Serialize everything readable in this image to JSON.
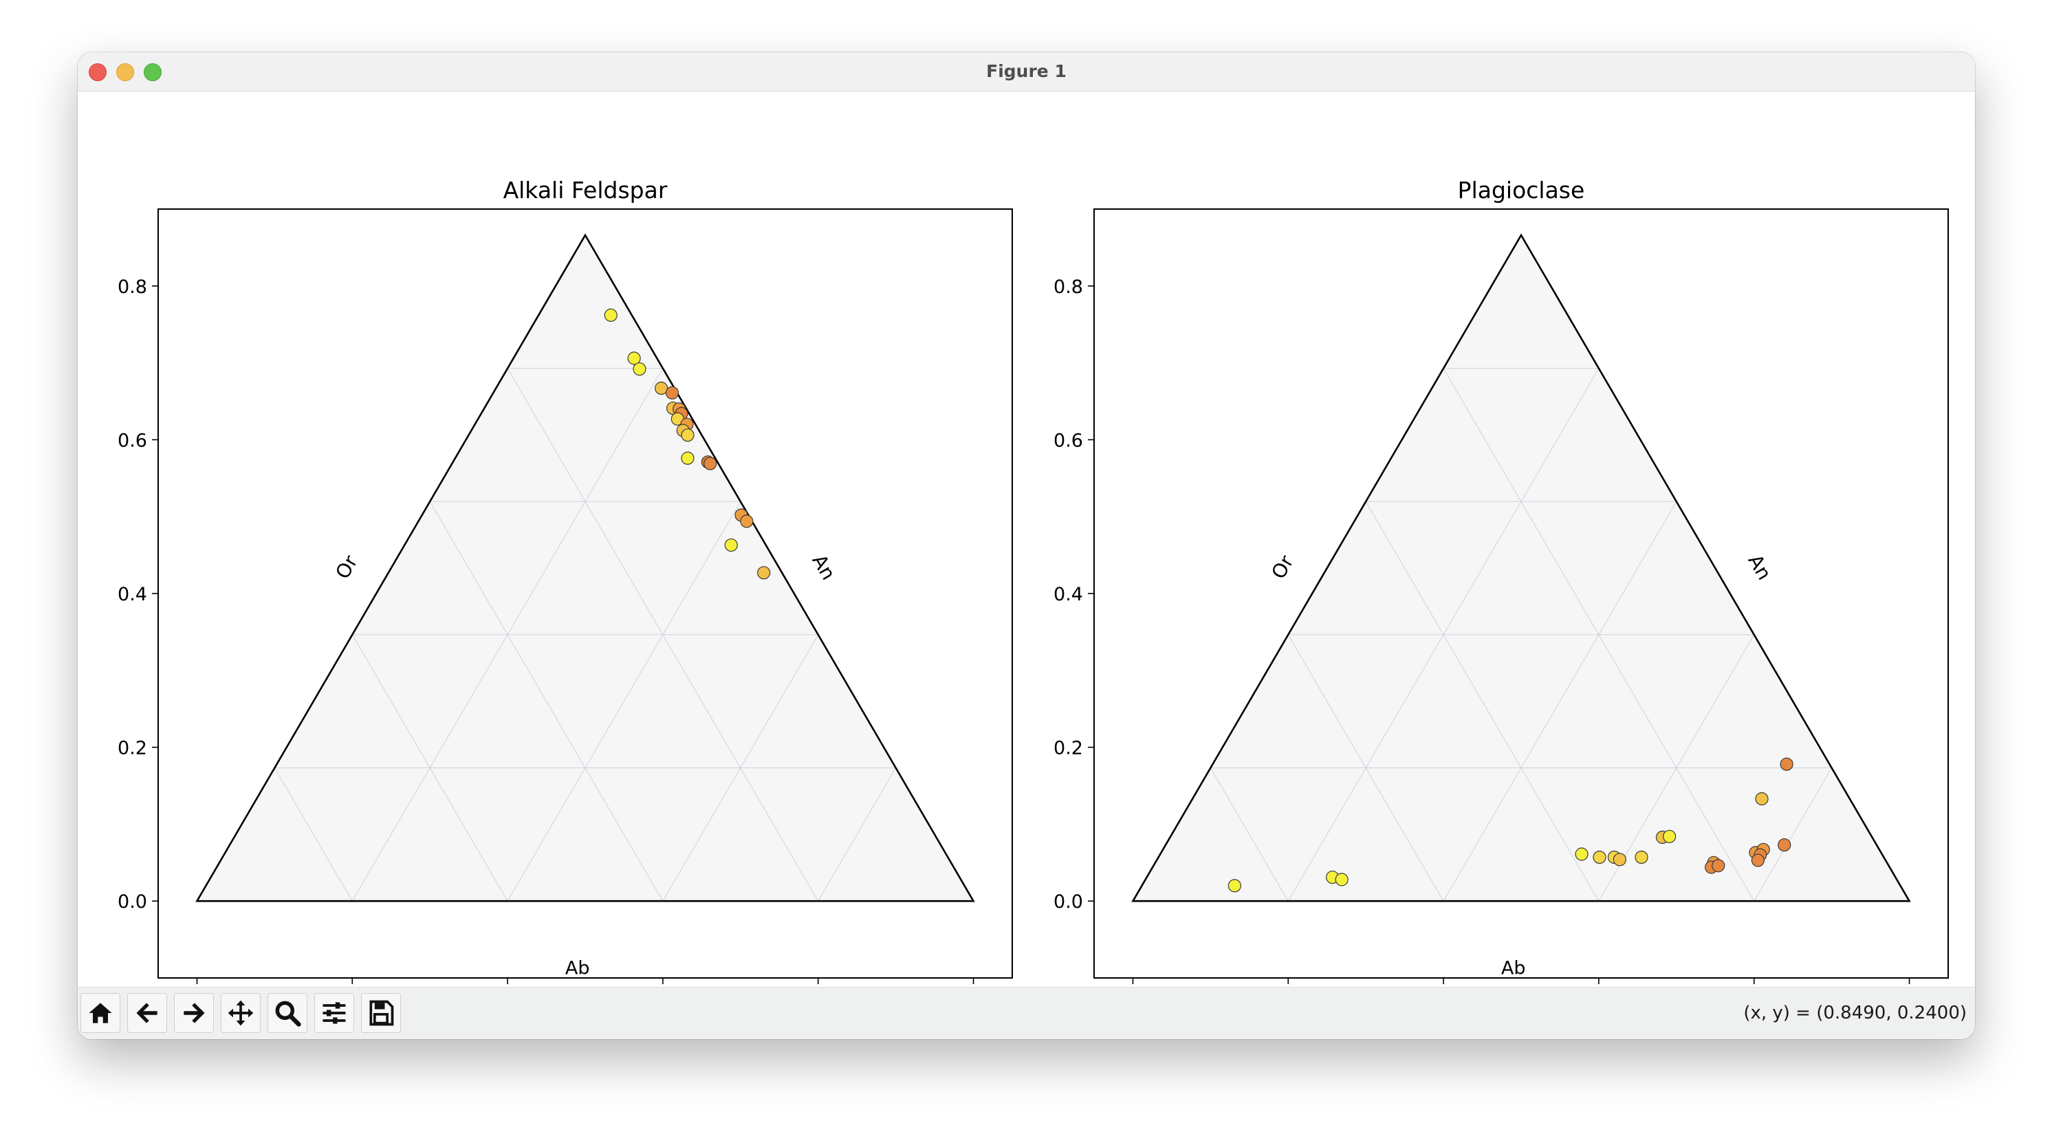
{
  "window": {
    "title": "Figure 1"
  },
  "toolbar": {
    "tools": [
      {
        "name": "home-icon"
      },
      {
        "name": "back-icon"
      },
      {
        "name": "forward-icon"
      },
      {
        "name": "pan-icon"
      },
      {
        "name": "zoom-icon"
      },
      {
        "name": "configure-subplots-icon"
      },
      {
        "name": "save-icon"
      }
    ],
    "coords": "(x, y) = (0.8490, 0.2400)"
  },
  "chart_data": [
    {
      "type": "scatter",
      "subtype": "ternary",
      "title": "Alkali Feldspar",
      "corner_labels": {
        "left_edge": "Or",
        "right_edge": "An",
        "bottom_edge": "Ab"
      },
      "xlim": [
        -0.05,
        1.05
      ],
      "ylim": [
        -0.1,
        0.9
      ],
      "xticks": [
        "0.0",
        "0.2",
        "0.4",
        "0.6",
        "0.8",
        "1.0"
      ],
      "yticks": [
        "0.0",
        "0.2",
        "0.4",
        "0.6",
        "0.8"
      ],
      "grid": true,
      "points": [
        {
          "x": 0.533,
          "y": 0.762,
          "color": "#f5f03a"
        },
        {
          "x": 0.563,
          "y": 0.706,
          "color": "#f5f03a"
        },
        {
          "x": 0.57,
          "y": 0.692,
          "color": "#f5f03a"
        },
        {
          "x": 0.598,
          "y": 0.667,
          "color": "#f0c146"
        },
        {
          "x": 0.612,
          "y": 0.661,
          "color": "#e5873e"
        },
        {
          "x": 0.613,
          "y": 0.641,
          "color": "#f0c146"
        },
        {
          "x": 0.621,
          "y": 0.64,
          "color": "#ed9b40"
        },
        {
          "x": 0.624,
          "y": 0.634,
          "color": "#e5873e"
        },
        {
          "x": 0.619,
          "y": 0.627,
          "color": "#f5d544"
        },
        {
          "x": 0.631,
          "y": 0.62,
          "color": "#ed9b40"
        },
        {
          "x": 0.626,
          "y": 0.612,
          "color": "#f0c146"
        },
        {
          "x": 0.632,
          "y": 0.606,
          "color": "#f5d544"
        },
        {
          "x": 0.632,
          "y": 0.576,
          "color": "#f5f03a"
        },
        {
          "x": 0.658,
          "y": 0.571,
          "color": "#d97a3a"
        },
        {
          "x": 0.661,
          "y": 0.569,
          "color": "#e5873e"
        },
        {
          "x": 0.701,
          "y": 0.502,
          "color": "#ed9b40"
        },
        {
          "x": 0.708,
          "y": 0.494,
          "color": "#ed9b40"
        },
        {
          "x": 0.688,
          "y": 0.463,
          "color": "#f5f03a"
        },
        {
          "x": 0.73,
          "y": 0.427,
          "color": "#f0c146"
        }
      ]
    },
    {
      "type": "scatter",
      "subtype": "ternary",
      "title": "Plagioclase",
      "corner_labels": {
        "left_edge": "Or",
        "right_edge": "An",
        "bottom_edge": "Ab"
      },
      "xlim": [
        -0.05,
        1.05
      ],
      "ylim": [
        -0.1,
        0.9
      ],
      "xticks": [
        "0.0",
        "0.2",
        "0.4",
        "0.6",
        "0.8",
        "1.0"
      ],
      "yticks": [
        "0.0",
        "0.2",
        "0.4",
        "0.6",
        "0.8"
      ],
      "grid": true,
      "points": [
        {
          "x": 0.131,
          "y": 0.02,
          "color": "#f5f03a"
        },
        {
          "x": 0.257,
          "y": 0.031,
          "color": "#f5f03a"
        },
        {
          "x": 0.269,
          "y": 0.028,
          "color": "#f5f03a"
        },
        {
          "x": 0.578,
          "y": 0.061,
          "color": "#f5f03a"
        },
        {
          "x": 0.601,
          "y": 0.057,
          "color": "#f5d544"
        },
        {
          "x": 0.62,
          "y": 0.057,
          "color": "#f5d544"
        },
        {
          "x": 0.627,
          "y": 0.054,
          "color": "#f0c146"
        },
        {
          "x": 0.655,
          "y": 0.057,
          "color": "#f5d544"
        },
        {
          "x": 0.682,
          "y": 0.083,
          "color": "#f0c146"
        },
        {
          "x": 0.691,
          "y": 0.084,
          "color": "#f5f03a"
        },
        {
          "x": 0.748,
          "y": 0.05,
          "color": "#ed9b40"
        },
        {
          "x": 0.745,
          "y": 0.044,
          "color": "#e5873e"
        },
        {
          "x": 0.754,
          "y": 0.046,
          "color": "#e5873e"
        },
        {
          "x": 0.802,
          "y": 0.063,
          "color": "#ed9b40"
        },
        {
          "x": 0.812,
          "y": 0.067,
          "color": "#ed9b40"
        },
        {
          "x": 0.808,
          "y": 0.06,
          "color": "#e5873e"
        },
        {
          "x": 0.805,
          "y": 0.053,
          "color": "#e5873e"
        },
        {
          "x": 0.839,
          "y": 0.073,
          "color": "#e5873e"
        },
        {
          "x": 0.81,
          "y": 0.133,
          "color": "#f0c146"
        },
        {
          "x": 0.842,
          "y": 0.178,
          "color": "#e5873e"
        }
      ]
    }
  ]
}
